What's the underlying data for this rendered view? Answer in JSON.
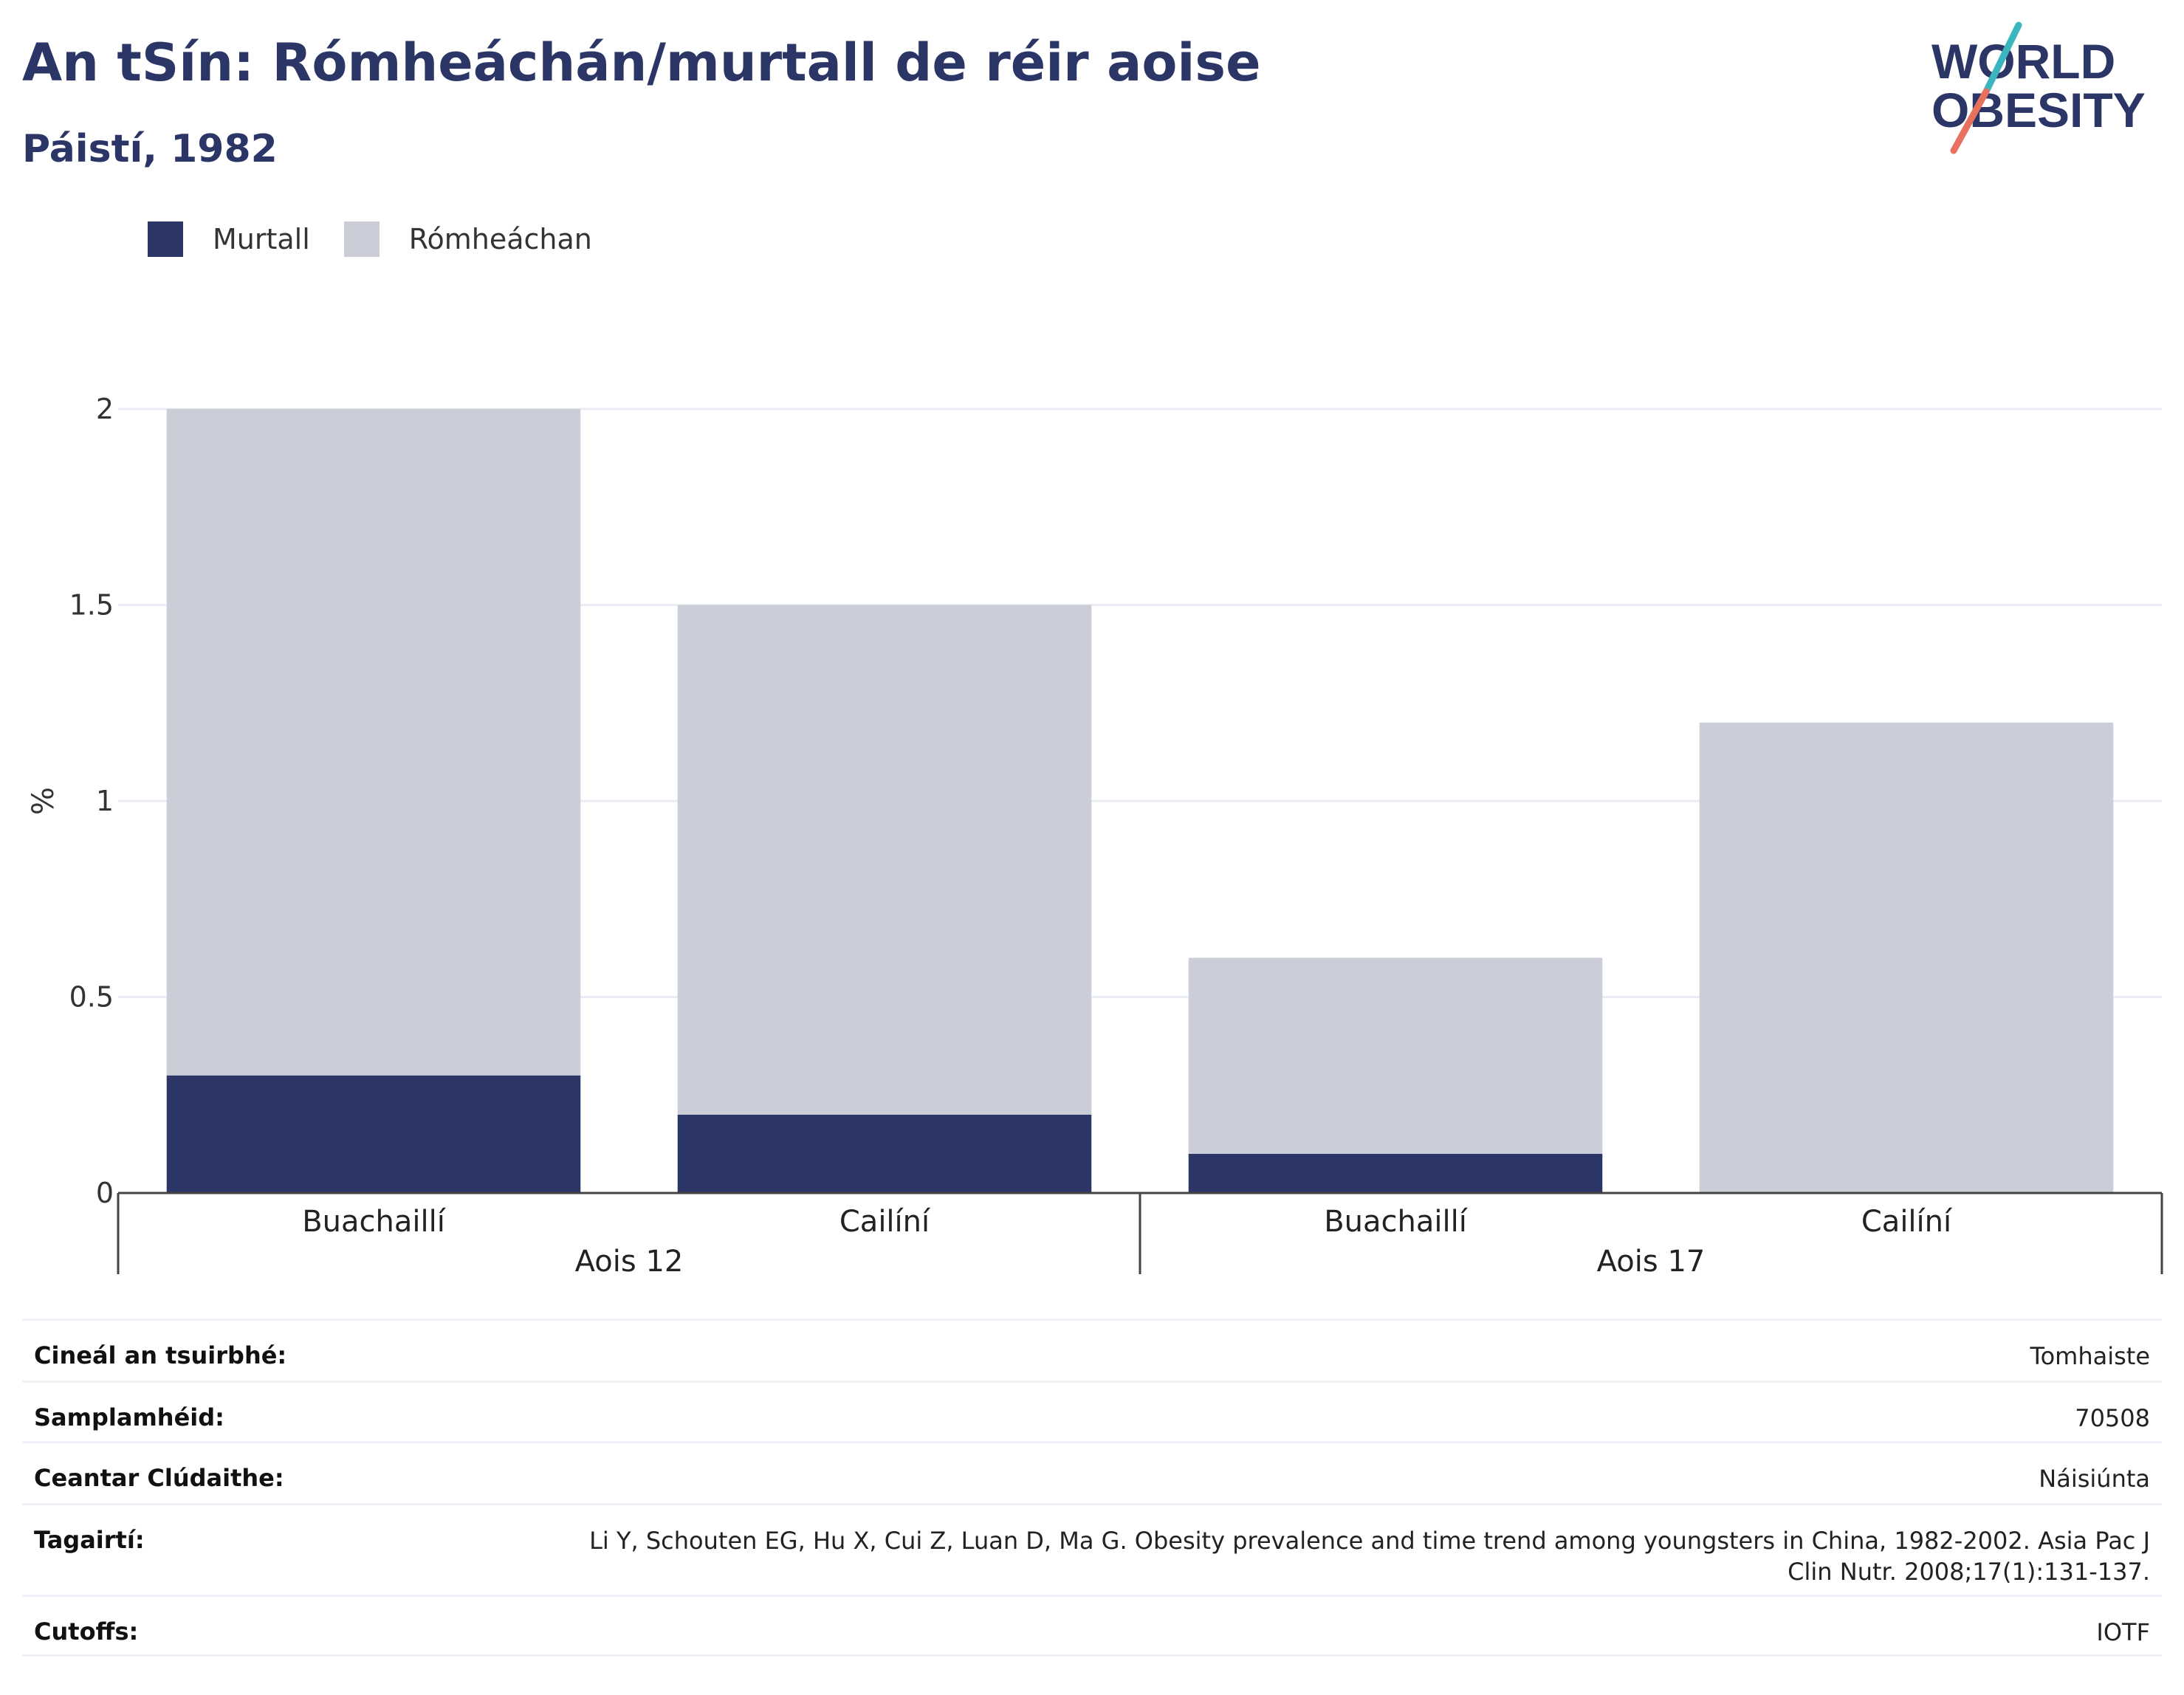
{
  "header": {
    "title": "An tSín: Rómheáchán/murtall de réir aoise",
    "subtitle": "Páistí, 1982"
  },
  "logo": {
    "line1": "WORLD",
    "line2": "OBESITY",
    "colors": {
      "text": "#2b3667",
      "slash_top": "#3bb6bf",
      "slash_bottom": "#e8705f"
    }
  },
  "legend": {
    "items": [
      {
        "label": "Murtall",
        "color": "#2b3667"
      },
      {
        "label": "Rómheáchan",
        "color": "#cbcdd8"
      }
    ]
  },
  "chart_data": {
    "type": "bar",
    "stacked": true,
    "ylabel": "%",
    "ylim": [
      0,
      2
    ],
    "yticks": [
      "0",
      "0.5",
      "1",
      "1.5",
      "2"
    ],
    "grid": true,
    "groups": [
      {
        "label": "Aois 12",
        "categories": [
          "Buachaillí",
          "Cailíní"
        ]
      },
      {
        "label": "Aois 17",
        "categories": [
          "Buachaillí",
          "Cailíní"
        ]
      }
    ],
    "series": [
      {
        "name": "Murtall",
        "color": "#2b3667",
        "values": [
          0.3,
          0.2,
          0.1,
          0.0
        ]
      },
      {
        "name": "Rómheáchan",
        "color": "#cbcdd8",
        "values": [
          1.7,
          1.3,
          0.5,
          1.2
        ]
      }
    ]
  },
  "info": {
    "rows": [
      {
        "label": "Cineál an tsuirbhé:",
        "value": "Tomhaiste"
      },
      {
        "label": "Samplamhéid:",
        "value": "70508"
      },
      {
        "label": "Ceantar Clúdaithe:",
        "value": "Náisiúnta"
      },
      {
        "label": "Tagairtí:",
        "value": "Li Y, Schouten EG, Hu X, Cui Z, Luan D, Ma G. Obesity prevalence and time trend among youngsters in China, 1982-2002. Asia Pac J Clin Nutr. 2008;17(1):131-137."
      },
      {
        "label": "Cutoffs:",
        "value": "IOTF"
      }
    ]
  }
}
